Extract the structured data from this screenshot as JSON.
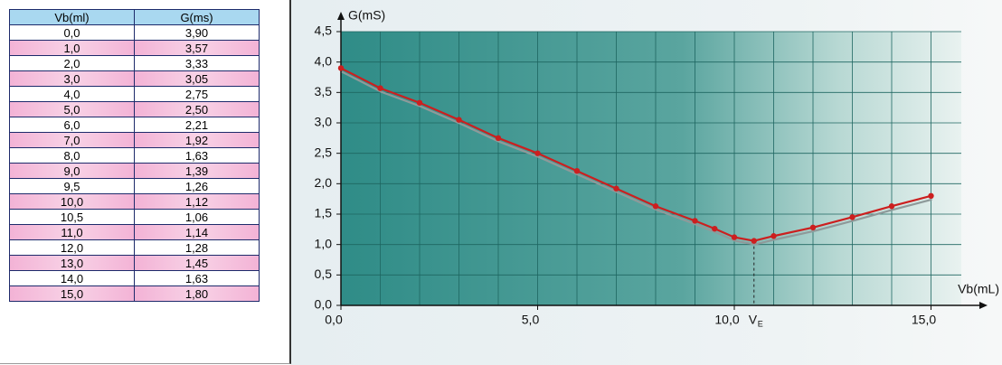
{
  "table": {
    "header": [
      "Vb(ml)",
      "G(ms)"
    ],
    "rows": [
      [
        "0,0",
        "3,90"
      ],
      [
        "1,0",
        "3,57"
      ],
      [
        "2,0",
        "3,33"
      ],
      [
        "3,0",
        "3,05"
      ],
      [
        "4,0",
        "2,75"
      ],
      [
        "5,0",
        "2,50"
      ],
      [
        "6,0",
        "2,21"
      ],
      [
        "7,0",
        "1,92"
      ],
      [
        "8,0",
        "1,63"
      ],
      [
        "9,0",
        "1,39"
      ],
      [
        "9,5",
        "1,26"
      ],
      [
        "10,0",
        "1,12"
      ],
      [
        "10,5",
        "1,06"
      ],
      [
        "11,0",
        "1,14"
      ],
      [
        "12,0",
        "1,28"
      ],
      [
        "13,0",
        "1,45"
      ],
      [
        "14,0",
        "1,63"
      ],
      [
        "15,0",
        "1,80"
      ]
    ]
  },
  "chart_data": {
    "type": "line",
    "y_label": "G(mS)",
    "x_label": "Vb(mL)",
    "color": "#cc1f1f",
    "x": [
      0,
      1,
      2,
      3,
      4,
      5,
      6,
      7,
      8,
      9,
      9.5,
      10,
      10.5,
      11,
      12,
      13,
      14,
      15
    ],
    "values": [
      3.9,
      3.57,
      3.33,
      3.05,
      2.75,
      2.5,
      2.21,
      1.92,
      1.63,
      1.39,
      1.26,
      1.12,
      1.06,
      1.14,
      1.28,
      1.45,
      1.63,
      1.8
    ],
    "xlim": [
      0,
      16
    ],
    "ylim": [
      0,
      4.5
    ],
    "xticks": [
      {
        "value": 0,
        "label": "0,0"
      },
      {
        "value": 5,
        "label": "5,0"
      },
      {
        "value": 10,
        "label": "10,0"
      },
      {
        "value": 15,
        "label": "15,0"
      }
    ],
    "xminorticks": [
      1,
      2,
      3,
      4,
      5,
      6,
      7,
      8,
      9,
      10,
      11,
      12,
      13,
      14,
      15,
      16
    ],
    "yticks": [
      {
        "value": 0,
        "label": "0,0"
      },
      {
        "value": 0.5,
        "label": "0,5"
      },
      {
        "value": 1,
        "label": "1,0"
      },
      {
        "value": 1.5,
        "label": "1,5"
      },
      {
        "value": 2,
        "label": "2,0"
      },
      {
        "value": 2.5,
        "label": "2,5"
      },
      {
        "value": 3,
        "label": "3,0"
      },
      {
        "value": 3.5,
        "label": "3,5"
      },
      {
        "value": 4,
        "label": "4,0"
      },
      {
        "value": 4.5,
        "label": "4,5"
      }
    ],
    "grid": true,
    "annotation": {
      "x": 10.5,
      "text": "V",
      "subscript": "E"
    }
  }
}
